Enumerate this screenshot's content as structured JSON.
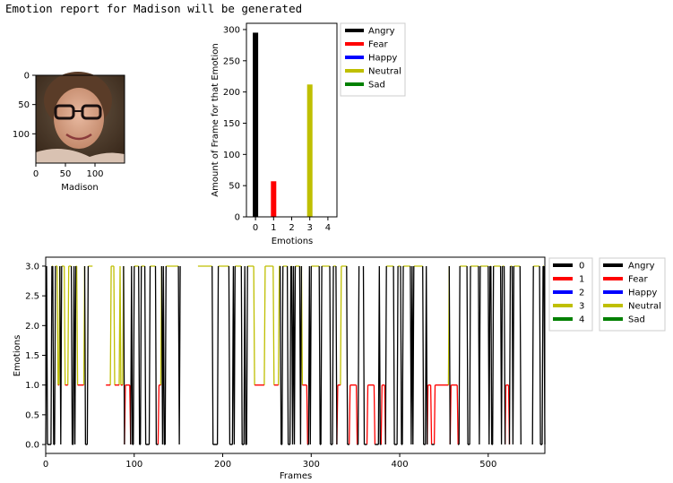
{
  "report": {
    "title": "Emotion report for Madison will be generated"
  },
  "chart_data": [
    {
      "type": "image",
      "xlabel": "Madison",
      "xticks": [
        "0",
        "50",
        "100"
      ],
      "yticks": [
        "0",
        "50",
        "100"
      ],
      "image_size": [
        150,
        150
      ],
      "description": "face"
    },
    {
      "type": "bar",
      "categories": [
        "0",
        "1",
        "2",
        "3",
        "4"
      ],
      "series": [
        {
          "name": "Angry",
          "color": "#000000",
          "values": [
            295,
            0,
            0,
            0,
            0
          ]
        },
        {
          "name": "Fear",
          "color": "#ff0000",
          "values": [
            0,
            57,
            0,
            0,
            0
          ]
        },
        {
          "name": "Happy",
          "color": "#0000ff",
          "values": [
            0,
            0,
            0,
            0,
            0
          ]
        },
        {
          "name": "Neutral",
          "color": "#bfbf00",
          "values": [
            0,
            0,
            0,
            212,
            0
          ]
        },
        {
          "name": "Sad",
          "color": "#008000",
          "values": [
            0,
            0,
            0,
            0,
            0
          ]
        }
      ],
      "xlabel": "Emotions",
      "ylabel": "Amount of Frame for that Emotion",
      "ylim": [
        0,
        310
      ],
      "yticks": [
        0,
        50,
        100,
        150,
        200,
        250,
        300
      ],
      "legend": "outside-right-top"
    },
    {
      "type": "line",
      "xlabel": "Frames",
      "ylabel": "Emotions",
      "xlim": [
        0,
        564
      ],
      "ylim": [
        -0.15,
        3.15
      ],
      "xticks": [
        0,
        100,
        200,
        300,
        400,
        500
      ],
      "yticks": [
        "0.0",
        "0.5",
        "1.0",
        "1.5",
        "2.0",
        "2.5",
        "3.0"
      ],
      "series": [
        {
          "name": "0",
          "color": "#000000"
        },
        {
          "name": "1",
          "color": "#ff0000"
        },
        {
          "name": "2",
          "color": "#0000ff"
        },
        {
          "name": "3",
          "color": "#bfbf00"
        },
        {
          "name": "4",
          "color": "#008000"
        }
      ],
      "legend2": [
        {
          "name": "Angry",
          "color": "#000000"
        },
        {
          "name": "Fear",
          "color": "#ff0000"
        },
        {
          "name": "Happy",
          "color": "#0000ff"
        },
        {
          "name": "Neutral",
          "color": "#bfbf00"
        },
        {
          "name": "Sad",
          "color": "#008000"
        }
      ],
      "gaps": [
        [
          54,
          68
        ],
        [
          153,
          172
        ],
        [
          355,
          359
        ],
        [
          538,
          550
        ]
      ],
      "fear_segments": [
        [
          12,
          16
        ],
        [
          18,
          27
        ],
        [
          36,
          44
        ],
        [
          68,
          84
        ],
        [
          85,
          88
        ],
        [
          90,
          96
        ],
        [
          128,
          131
        ],
        [
          236,
          248
        ],
        [
          258,
          264
        ],
        [
          290,
          296
        ],
        [
          330,
          334
        ],
        [
          344,
          352
        ],
        [
          364,
          372
        ],
        [
          380,
          384
        ],
        [
          432,
          436
        ],
        [
          440,
          456
        ],
        [
          458,
          466
        ],
        [
          520,
          524
        ]
      ],
      "neutral_segments": [
        [
          12,
          14
        ],
        [
          18,
          22
        ],
        [
          26,
          30
        ],
        [
          34,
          36
        ],
        [
          48,
          54
        ],
        [
          74,
          78
        ],
        [
          100,
          104
        ],
        [
          108,
          112
        ],
        [
          118,
          124
        ],
        [
          136,
          150
        ],
        [
          172,
          188
        ],
        [
          196,
          206
        ],
        [
          214,
          222
        ],
        [
          228,
          234
        ],
        [
          250,
          256
        ],
        [
          268,
          274
        ],
        [
          282,
          288
        ],
        [
          300,
          308
        ],
        [
          314,
          322
        ],
        [
          334,
          340
        ],
        [
          386,
          394
        ],
        [
          398,
          402
        ],
        [
          404,
          412
        ],
        [
          418,
          426
        ],
        [
          468,
          476
        ],
        [
          480,
          488
        ],
        [
          492,
          500
        ],
        [
          508,
          514
        ],
        [
          530,
          536
        ],
        [
          552,
          558
        ]
      ],
      "angry_seed": 7
    }
  ]
}
